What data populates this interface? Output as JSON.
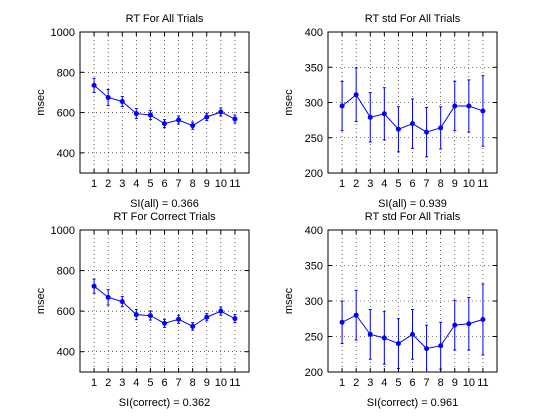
{
  "colors": {
    "series": "#0000ff",
    "axes": "#000000",
    "grid": "#000000",
    "background": "#ffffff"
  },
  "chart_data": [
    {
      "type": "line",
      "title": "RT For All Trials",
      "xlabel": "SI(all) = 0.366",
      "ylabel": "msec",
      "xlim": [
        0,
        12
      ],
      "ylim": [
        300,
        1000
      ],
      "xticks": [
        1,
        2,
        3,
        4,
        5,
        6,
        7,
        8,
        9,
        10,
        11
      ],
      "yticks": [
        400,
        600,
        800,
        1000
      ],
      "grid": true,
      "series": [
        {
          "x": [
            1,
            2,
            3,
            4,
            5,
            6,
            7,
            8,
            9,
            10,
            11
          ],
          "y": [
            735,
            675,
            655,
            595,
            588,
            545,
            563,
            535,
            578,
            603,
            568
          ],
          "error": [
            35,
            40,
            25,
            25,
            22,
            20,
            20,
            18,
            18,
            20,
            20
          ]
        }
      ]
    },
    {
      "type": "line",
      "title": "RT std For All Trials",
      "xlabel": "SI(all) = 0.939",
      "ylabel": "msec",
      "xlim": [
        0,
        12
      ],
      "ylim": [
        200,
        400
      ],
      "xticks": [
        1,
        2,
        3,
        4,
        5,
        6,
        7,
        8,
        9,
        10,
        11
      ],
      "yticks": [
        200,
        250,
        300,
        350,
        400
      ],
      "grid": true,
      "series": [
        {
          "x": [
            1,
            2,
            3,
            4,
            5,
            6,
            7,
            8,
            9,
            10,
            11
          ],
          "y": [
            295,
            311,
            279,
            284,
            262,
            270,
            258,
            264,
            295,
            295,
            288
          ],
          "error": [
            35,
            38,
            35,
            37,
            32,
            35,
            35,
            30,
            35,
            37,
            50
          ]
        }
      ]
    },
    {
      "type": "line",
      "title": "RT For Correct Trials",
      "xlabel": "SI(correct) = 0.362",
      "ylabel": "msec",
      "xlim": [
        0,
        12
      ],
      "ylim": [
        300,
        1000
      ],
      "xticks": [
        1,
        2,
        3,
        4,
        5,
        6,
        7,
        8,
        9,
        10,
        11
      ],
      "yticks": [
        400,
        600,
        800,
        1000
      ],
      "grid": true,
      "series": [
        {
          "x": [
            1,
            2,
            3,
            4,
            5,
            6,
            7,
            8,
            9,
            10,
            11
          ],
          "y": [
            723,
            668,
            647,
            583,
            578,
            540,
            560,
            525,
            570,
            600,
            563
          ],
          "error": [
            35,
            38,
            25,
            25,
            22,
            20,
            20,
            18,
            18,
            20,
            20
          ]
        }
      ]
    },
    {
      "type": "line",
      "title": "RT std For All Trials",
      "xlabel": "SI(correct) = 0.961",
      "ylabel": "msec",
      "xlim": [
        0,
        12
      ],
      "ylim": [
        200,
        400
      ],
      "xticks": [
        1,
        2,
        3,
        4,
        5,
        6,
        7,
        8,
        9,
        10,
        11
      ],
      "yticks": [
        200,
        250,
        300,
        350,
        400
      ],
      "grid": true,
      "series": [
        {
          "x": [
            1,
            2,
            3,
            4,
            5,
            6,
            7,
            8,
            9,
            10,
            11
          ],
          "y": [
            270,
            280,
            253,
            248,
            240,
            253,
            233,
            237,
            266,
            268,
            274
          ],
          "error": [
            30,
            35,
            35,
            37,
            35,
            35,
            33,
            33,
            35,
            37,
            50
          ]
        }
      ]
    }
  ]
}
